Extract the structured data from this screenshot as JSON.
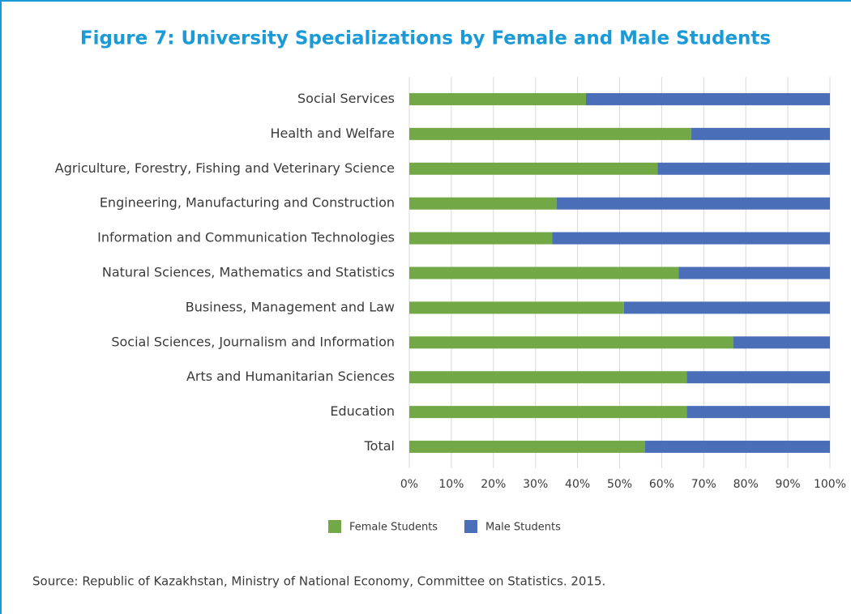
{
  "chart_data": {
    "type": "stacked_barh",
    "title": "Figure 7: University Specializations by Female and Male Students",
    "source": "Source: Republic of Kazakhstan, Ministry of National Economy, Committee on Statistics. 2015.",
    "categories": [
      "Social Services",
      "Health and Welfare",
      "Agriculture, Forestry, Fishing and Veterinary Science",
      "Engineering, Manufacturing and Construction",
      "Information and Communication Technologies",
      "Natural Sciences, Mathematics and Statistics",
      "Business, Management and Law",
      "Social Sciences, Journalism and Information",
      "Arts and Humanitarian Sciences",
      "Education",
      "Total"
    ],
    "series": [
      {
        "name": "Female Students",
        "color": "#72a946",
        "values": [
          42,
          67,
          59,
          35,
          34,
          64,
          51,
          77,
          66,
          66,
          56
        ]
      },
      {
        "name": "Male Students",
        "color": "#4a6fb8",
        "values": [
          58,
          33,
          41,
          65,
          66,
          36,
          49,
          23,
          34,
          34,
          44
        ]
      }
    ],
    "xlim": [
      0,
      100
    ],
    "xticks": [
      {
        "value": 0,
        "label": "0%"
      },
      {
        "value": 10,
        "label": "10%"
      },
      {
        "value": 20,
        "label": "20%"
      },
      {
        "value": 30,
        "label": "30%"
      },
      {
        "value": 40,
        "label": "40%"
      },
      {
        "value": 50,
        "label": "50%"
      },
      {
        "value": 60,
        "label": "60%"
      },
      {
        "value": 70,
        "label": "70%"
      },
      {
        "value": 80,
        "label": "80%"
      },
      {
        "value": 90,
        "label": "90%"
      },
      {
        "value": 100,
        "label": "100%"
      }
    ],
    "grid": true,
    "legend": "bottom"
  }
}
